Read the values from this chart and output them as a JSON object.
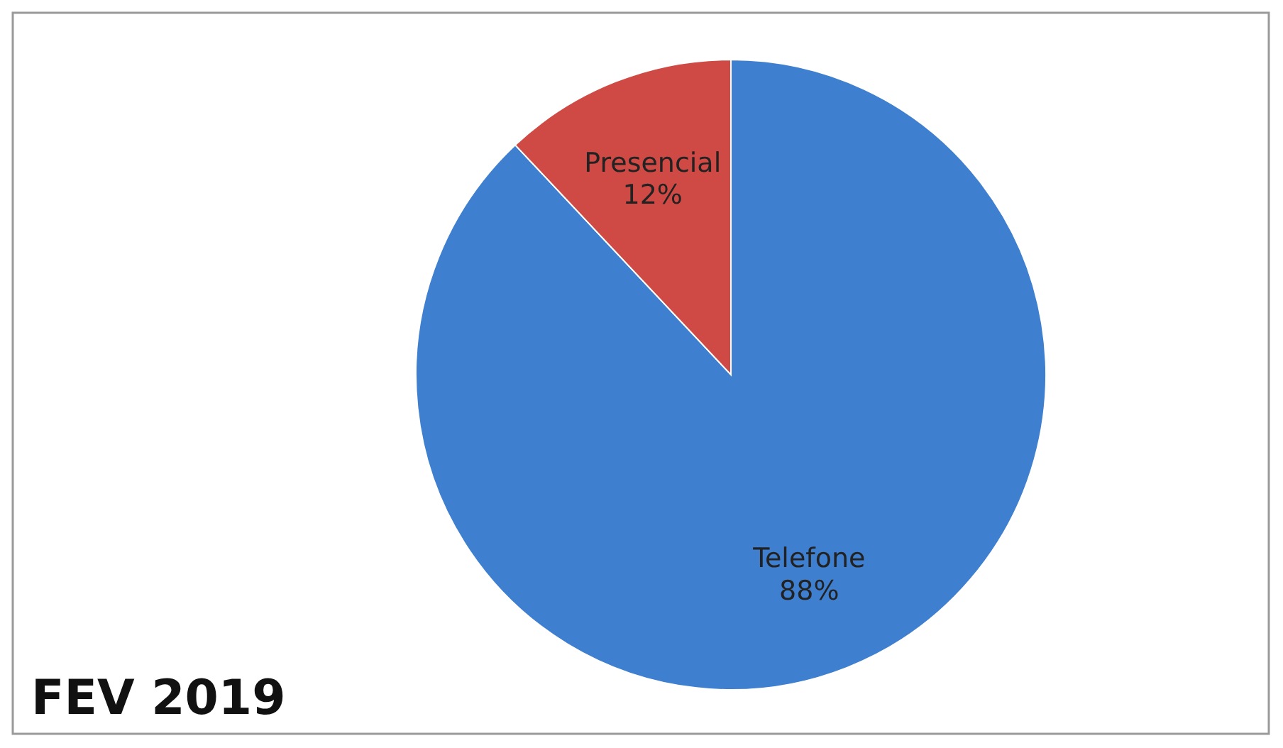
{
  "chart_data": {
    "type": "pie",
    "title": "FEV 2019",
    "categories": [
      "Telefone",
      "Presencial"
    ],
    "values": [
      88,
      12
    ],
    "colors": [
      "#3f7fd0",
      "#cf4a45"
    ],
    "value_labels": [
      "88%",
      "12%"
    ]
  }
}
